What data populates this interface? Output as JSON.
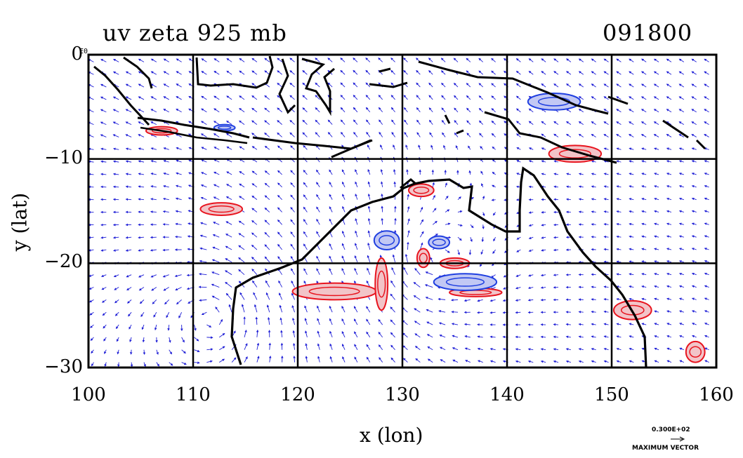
{
  "title": "uv zeta 925 mb",
  "timestamp": "091800",
  "xlabel": "x (lon)",
  "ylabel": "y (lat)",
  "corner_label": "E0",
  "x_ticks": [
    "100",
    "110",
    "120",
    "130",
    "140",
    "150",
    "160"
  ],
  "y_ticks": [
    "0",
    "−10",
    "−20",
    "−30"
  ],
  "legend": {
    "value": "0.300E+02",
    "label": "MAXIMUM VECTOR"
  },
  "chart_data": {
    "type": "map",
    "x_range": [
      100,
      160
    ],
    "y_range": [
      -30,
      0
    ],
    "grid_lon": [
      110,
      120,
      130,
      140,
      150
    ],
    "grid_lat": [
      -10,
      -20
    ],
    "colors": {
      "vectors": "#1f1fd6",
      "positive_contour": "#e8141e",
      "positive_fill": "#f2c4c8",
      "negative_contour": "#1f3fe0",
      "negative_fill": "#c2c8f4",
      "coast": "#000000"
    },
    "positive_regions": [
      {
        "lon": 112.7,
        "lat": -14.8,
        "rx": 2.0,
        "ry": 0.6
      },
      {
        "lon": 123.5,
        "lat": -22.7,
        "rx": 4.0,
        "ry": 0.8
      },
      {
        "lon": 128.0,
        "lat": -22.0,
        "rx": 0.6,
        "ry": 2.5
      },
      {
        "lon": 131.8,
        "lat": -13.0,
        "rx": 1.2,
        "ry": 0.6
      },
      {
        "lon": 132.0,
        "lat": -19.5,
        "rx": 0.6,
        "ry": 0.9
      },
      {
        "lon": 135.0,
        "lat": -20.0,
        "rx": 1.4,
        "ry": 0.5
      },
      {
        "lon": 137.0,
        "lat": -22.8,
        "rx": 2.5,
        "ry": 0.4
      },
      {
        "lon": 146.5,
        "lat": -9.5,
        "rx": 2.5,
        "ry": 0.8
      },
      {
        "lon": 152.0,
        "lat": -24.5,
        "rx": 1.8,
        "ry": 0.9
      },
      {
        "lon": 158.0,
        "lat": -28.5,
        "rx": 0.9,
        "ry": 1.0
      },
      {
        "lon": 107.0,
        "lat": -7.3,
        "rx": 1.5,
        "ry": 0.4
      }
    ],
    "negative_regions": [
      {
        "lon": 128.5,
        "lat": -17.8,
        "rx": 1.2,
        "ry": 0.9
      },
      {
        "lon": 133.5,
        "lat": -18.0,
        "rx": 1.0,
        "ry": 0.6
      },
      {
        "lon": 136.0,
        "lat": -21.8,
        "rx": 3.0,
        "ry": 0.8
      },
      {
        "lon": 144.5,
        "lat": -4.5,
        "rx": 2.5,
        "ry": 0.8
      },
      {
        "lon": 113.0,
        "lat": -7.0,
        "rx": 1.0,
        "ry": 0.3
      }
    ]
  }
}
